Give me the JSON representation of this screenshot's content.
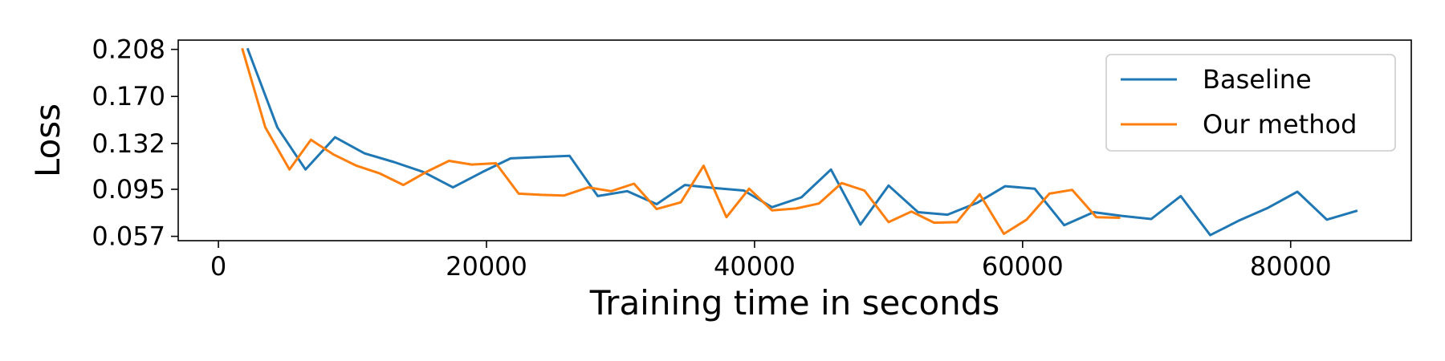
{
  "chart_data": {
    "type": "line",
    "title": "",
    "xlabel": "Training time in seconds",
    "ylabel": "Loss",
    "xlim": [
      -3000,
      89000
    ],
    "ylim": [
      0.0535,
      0.2155
    ],
    "xticks": [
      0,
      20000,
      40000,
      60000,
      80000
    ],
    "xtick_labels": [
      "0",
      "20000",
      "40000",
      "60000",
      "80000"
    ],
    "yticks": [
      0.057,
      0.095,
      0.132,
      0.17,
      0.208
    ],
    "ytick_labels": [
      "0.057",
      "0.095",
      "0.132",
      "0.170",
      "0.208"
    ],
    "grid": false,
    "legend_position": "top-right",
    "series": [
      {
        "name": "Baseline",
        "color": "#1f77b4",
        "x": [
          2200,
          4400,
          6500,
          8700,
          10900,
          13100,
          15300,
          17500,
          19700,
          21800,
          24000,
          26200,
          28300,
          30500,
          32700,
          34800,
          37000,
          39200,
          41300,
          43500,
          45700,
          47900,
          50000,
          52200,
          54400,
          56600,
          58700,
          60900,
          63100,
          65300,
          67400,
          69600,
          71800,
          74000,
          76100,
          78300,
          80500,
          82700,
          84900
        ],
        "y": [
          0.208,
          0.145,
          0.111,
          0.137,
          0.124,
          0.117,
          0.109,
          0.0965,
          0.109,
          0.12,
          0.121,
          0.122,
          0.0895,
          0.0935,
          0.083,
          0.0985,
          0.096,
          0.094,
          0.0805,
          0.0885,
          0.111,
          0.0665,
          0.098,
          0.0765,
          0.0745,
          0.084,
          0.0975,
          0.0955,
          0.066,
          0.0765,
          0.0735,
          0.071,
          0.0895,
          0.058,
          0.0695,
          0.08,
          0.093,
          0.0705,
          0.0775
        ]
      },
      {
        "name": "Our method",
        "color": "#ff7f0e",
        "x": [
          1800,
          3500,
          5300,
          6900,
          8600,
          10300,
          12000,
          13800,
          15500,
          17200,
          18900,
          20700,
          22400,
          24100,
          25800,
          27600,
          29300,
          31000,
          32700,
          34500,
          36200,
          37900,
          39600,
          41300,
          43100,
          44800,
          46500,
          48200,
          50000,
          51700,
          53400,
          55100,
          56800,
          58600,
          60300,
          62000,
          63700,
          65500,
          67200
        ],
        "y": [
          0.208,
          0.145,
          0.111,
          0.135,
          0.123,
          0.114,
          0.108,
          0.0985,
          0.109,
          0.118,
          0.115,
          0.116,
          0.0915,
          0.0905,
          0.09,
          0.0965,
          0.0935,
          0.0995,
          0.079,
          0.0845,
          0.114,
          0.0725,
          0.0955,
          0.078,
          0.0795,
          0.0835,
          0.1,
          0.094,
          0.0685,
          0.077,
          0.068,
          0.0685,
          0.091,
          0.059,
          0.0705,
          0.0915,
          0.0945,
          0.0725,
          0.072
        ]
      }
    ]
  }
}
